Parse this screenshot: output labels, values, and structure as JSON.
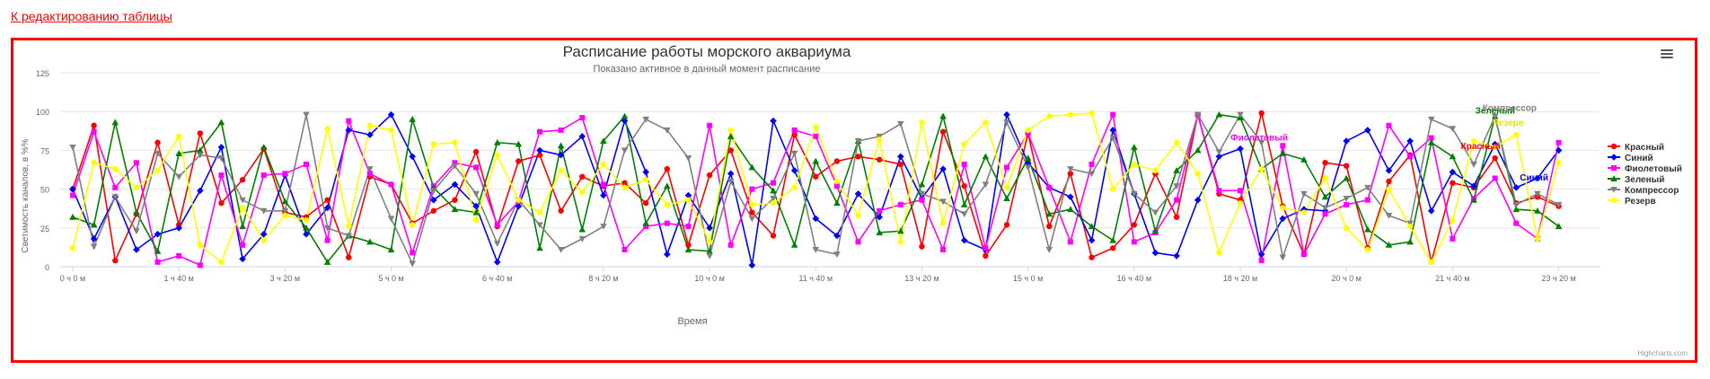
{
  "back_link": "К редактированию таблицы",
  "credits": "Highcharts.com",
  "colors": {
    "frame": "#ff0000",
    "link": "#ff0000",
    "grid": "#e6e6e6",
    "axis_text": "#666666",
    "title_text": "#333333"
  },
  "menu_icon": "hamburger-menu-icon",
  "chart_data": {
    "type": "line",
    "title": "Расписание работы морского аквариума",
    "subtitle": "Показано активное в данный момент расписание",
    "xlabel": "Время",
    "ylabel": "Светимость каналов, в %%",
    "ylim": [
      0,
      125
    ],
    "yticks": [
      0,
      25,
      50,
      75,
      100,
      125
    ],
    "xlim": [
      0,
      1430
    ],
    "xtick_values": [
      0,
      100,
      200,
      300,
      400,
      500,
      600,
      700,
      800,
      900,
      1000,
      1100,
      1200,
      1300,
      1400
    ],
    "xtick_labels": [
      "0 ч 0 м",
      "1 ч 40 м",
      "3 ч 20 м",
      "5 ч 0 м",
      "6 ч 40 м",
      "8 ч 20 м",
      "10 ч 0 м",
      "11 ч 40 м",
      "13 ч 20 м",
      "15 ч 0 м",
      "16 ч 40 м",
      "18 ч 20 м",
      "20 ч 0 м",
      "21 ч 40 м",
      "23 ч 20 м"
    ],
    "x_minutes": [
      0,
      20,
      40,
      60,
      80,
      100,
      120,
      140,
      160,
      180,
      200,
      220,
      240,
      260,
      280,
      300,
      320,
      340,
      360,
      380,
      400,
      420,
      440,
      460,
      480,
      500,
      520,
      540,
      560,
      580,
      600,
      620,
      640,
      660,
      680,
      700,
      720,
      740,
      760,
      780,
      800,
      820,
      840,
      860,
      880,
      900,
      920,
      940,
      960,
      980,
      1000,
      1020,
      1040,
      1060,
      1080,
      1100,
      1120,
      1140,
      1160,
      1180,
      1200,
      1220,
      1240,
      1260,
      1280,
      1300,
      1320,
      1340,
      1360,
      1380,
      1400
    ],
    "grid": true,
    "legend_position": "right",
    "series": [
      {
        "name": "Красный",
        "color": "#ff0000",
        "marker": "circle",
        "values": [
          50,
          91,
          4,
          34,
          80,
          27,
          86,
          41,
          56,
          76,
          35,
          32,
          43,
          6,
          58,
          53,
          28,
          36,
          43,
          74,
          26,
          68,
          72,
          36,
          58,
          52,
          54,
          41,
          63,
          14,
          59,
          75,
          35,
          20,
          85,
          58,
          68,
          71,
          69,
          66,
          13,
          87,
          52,
          7,
          27,
          86,
          26,
          60,
          6,
          12,
          27,
          60,
          32,
          98,
          47,
          43,
          99,
          39,
          8,
          67,
          65,
          12,
          55,
          72,
          3,
          54,
          51,
          70,
          41,
          45,
          39
        ],
        "label_text": "Красный"
      },
      {
        "name": "Синий",
        "color": "#0000ff",
        "marker": "diamond",
        "values": [
          50,
          18,
          45,
          11,
          21,
          25,
          49,
          77,
          5,
          21,
          59,
          21,
          38,
          88,
          85,
          98,
          71,
          43,
          53,
          39,
          3,
          39,
          75,
          72,
          84,
          46,
          94,
          61,
          8,
          46,
          25,
          60,
          1,
          94,
          62,
          31,
          20,
          47,
          32,
          71,
          44,
          63,
          17,
          11,
          98,
          67,
          51,
          45,
          17,
          88,
          47,
          9,
          7,
          43,
          71,
          76,
          8,
          31,
          37,
          36,
          81,
          88,
          62,
          81,
          36,
          61,
          52,
          79,
          51,
          57,
          75
        ],
        "label_text": "Синий"
      },
      {
        "name": "Фиолетовый",
        "color": "#ff00ff",
        "marker": "square",
        "values": [
          46,
          87,
          51,
          67,
          3,
          7,
          1,
          59,
          14,
          59,
          60,
          66,
          17,
          94,
          60,
          53,
          9,
          52,
          67,
          64,
          27,
          42,
          87,
          88,
          96,
          53,
          11,
          26,
          28,
          26,
          91,
          14,
          50,
          54,
          88,
          84,
          52,
          16,
          36,
          40,
          43,
          11,
          66,
          12,
          64,
          86,
          51,
          16,
          66,
          98,
          16,
          22,
          43,
          98,
          49,
          49,
          4,
          78,
          8,
          34,
          40,
          43,
          91,
          71,
          83,
          18,
          44,
          57,
          28,
          18,
          80
        ],
        "label_text": "Фиолетовый"
      },
      {
        "name": "Зеленый",
        "color": "#008000",
        "marker": "triangle",
        "values": [
          32,
          27,
          93,
          35,
          10,
          73,
          75,
          93,
          26,
          77,
          42,
          25,
          3,
          20,
          16,
          11,
          95,
          51,
          37,
          35,
          80,
          79,
          12,
          78,
          24,
          81,
          97,
          28,
          52,
          11,
          10,
          84,
          64,
          49,
          14,
          68,
          41,
          81,
          22,
          23,
          53,
          97,
          40,
          71,
          44,
          70,
          34,
          37,
          26,
          17,
          77,
          23,
          62,
          75,
          98,
          96,
          63,
          73,
          69,
          45,
          57,
          24,
          14,
          16,
          80,
          71,
          43,
          97,
          37,
          36,
          26
        ],
        "label_text": "Зеленый"
      },
      {
        "name": "Компрессор",
        "color": "#808080",
        "marker": "triangle-down",
        "values": [
          77,
          13,
          45,
          23,
          73,
          58,
          72,
          70,
          43,
          36,
          36,
          98,
          25,
          20,
          63,
          31,
          2,
          49,
          65,
          47,
          15,
          43,
          27,
          11,
          18,
          26,
          75,
          95,
          88,
          70,
          7,
          55,
          31,
          44,
          73,
          11,
          8,
          81,
          84,
          92,
          47,
          42,
          34,
          53,
          93,
          64,
          11,
          63,
          60,
          83,
          47,
          35,
          52,
          98,
          74,
          98,
          80,
          6,
          47,
          38,
          44,
          51,
          33,
          28,
          95,
          89,
          66,
          97,
          40,
          47,
          40
        ],
        "label_text": "Компрессор"
      },
      {
        "name": "Резерв",
        "color": "#ffff00",
        "marker": "circle",
        "values": [
          12,
          67,
          63,
          51,
          62,
          84,
          14,
          3,
          38,
          17,
          33,
          30,
          89,
          26,
          91,
          88,
          27,
          79,
          80,
          30,
          72,
          43,
          35,
          62,
          48,
          66,
          51,
          56,
          40,
          43,
          16,
          88,
          40,
          41,
          51,
          90,
          55,
          33,
          82,
          16,
          93,
          28,
          79,
          93,
          51,
          88,
          97,
          98,
          99,
          50,
          66,
          62,
          80,
          60,
          9,
          41,
          63,
          38,
          35,
          57,
          25,
          11,
          50,
          26,
          3,
          30,
          81,
          77,
          85,
          18,
          67
        ],
        "label_text": "Резерв"
      }
    ]
  }
}
